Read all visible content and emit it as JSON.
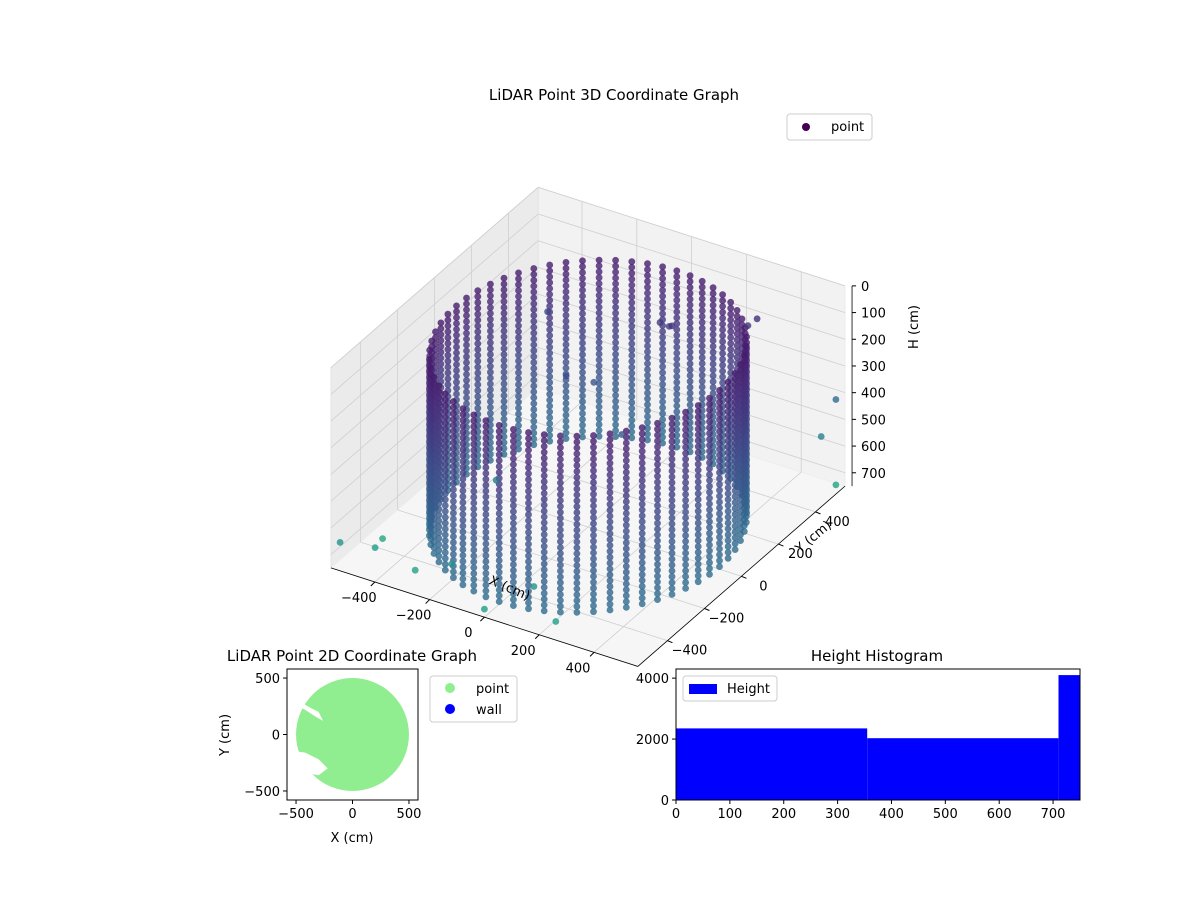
{
  "chart_data": [
    {
      "type": "scatter",
      "projection": "3d",
      "title": "LiDAR Point 3D Coordinate Graph",
      "xlabel": "X (cm)",
      "ylabel": "Y (cm)",
      "zlabel": "H (cm)",
      "xticks": [
        -400,
        -200,
        0,
        200,
        400
      ],
      "yticks": [
        -400,
        -200,
        0,
        200,
        400
      ],
      "zticks": [
        0,
        100,
        200,
        300,
        400,
        500,
        600,
        700
      ],
      "xlim": [
        -560,
        560
      ],
      "ylim": [
        -560,
        560
      ],
      "zlim": [
        0,
        750
      ],
      "z_axis_inverted": true,
      "grid": true,
      "colormap": "viridis",
      "legend": {
        "placement": "top-right",
        "entries": [
          {
            "label": "point",
            "color": "#440154"
          }
        ]
      },
      "structure": {
        "wall_radius": 480,
        "wall_height_range": [
          80,
          750
        ],
        "wall_columns_every_degrees": 6
      },
      "sample_points": [
        {
          "x": 300,
          "y": 420,
          "h": 150
        },
        {
          "x": 320,
          "y": 440,
          "h": 130
        },
        {
          "x": 40,
          "y": 330,
          "h": 170
        },
        {
          "x": 60,
          "y": 350,
          "h": 190
        },
        {
          "x": 90,
          "y": 320,
          "h": 160
        },
        {
          "x": -120,
          "y": 60,
          "h": 260
        },
        {
          "x": -60,
          "y": 120,
          "h": 300
        },
        {
          "x": 150,
          "y": -40,
          "h": 330
        },
        {
          "x": -200,
          "y": -200,
          "h": 520
        },
        {
          "x": -350,
          "y": 300,
          "h": 240
        },
        {
          "x": 540,
          "y": 540,
          "h": 420
        },
        {
          "x": 500,
          "y": 520,
          "h": 560
        },
        {
          "x": -540,
          "y": -540,
          "h": 660
        },
        {
          "x": 540,
          "y": 540,
          "h": 740
        },
        {
          "x": -480,
          "y": -440,
          "h": 720
        },
        {
          "x": -320,
          "y": -460,
          "h": 740
        },
        {
          "x": 0,
          "y": -560,
          "h": 720
        },
        {
          "x": 220,
          "y": -500,
          "h": 730
        },
        {
          "x": -520,
          "y": -340,
          "h": 760
        },
        {
          "x": -160,
          "y": -500,
          "h": 640
        },
        {
          "x": 120,
          "y": -470,
          "h": 650
        }
      ]
    },
    {
      "type": "scatter",
      "title": "LiDAR Point 2D Coordinate Graph",
      "xlabel": "X (cm)",
      "ylabel": "Y (cm)",
      "xlim": [
        -580,
        580
      ],
      "ylim": [
        -580,
        580
      ],
      "xticks": [
        -500,
        0,
        500
      ],
      "yticks": [
        -500,
        0,
        500
      ],
      "legend": {
        "placement": "outside-right",
        "entries": [
          {
            "label": "point",
            "color": "#90ee90"
          },
          {
            "label": "wall",
            "color": "#0000ff"
          }
        ]
      },
      "filled_region": {
        "radius": 500,
        "center": [
          0,
          0
        ],
        "color": "#90ee90"
      }
    },
    {
      "type": "bar",
      "subtype": "histogram",
      "title": "Height Histogram",
      "xlim": [
        0,
        750
      ],
      "ylim": [
        0,
        4300
      ],
      "xticks": [
        0,
        100,
        200,
        300,
        400,
        500,
        600,
        700
      ],
      "yticks": [
        0,
        2000,
        4000
      ],
      "color": "#0000ff",
      "legend": {
        "placement": "top-left",
        "entries": [
          {
            "label": "Height",
            "color": "#0000ff"
          }
        ]
      },
      "bins": [
        {
          "from": 0,
          "to": 355,
          "count": 2350
        },
        {
          "from": 355,
          "to": 710,
          "count": 2030
        },
        {
          "from": 710,
          "to": 750,
          "count": 4100
        }
      ]
    }
  ]
}
